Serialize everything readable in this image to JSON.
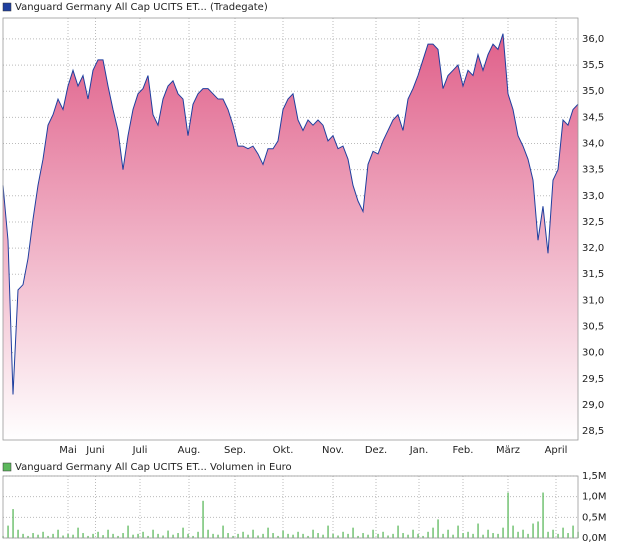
{
  "chart_data": [
    {
      "type": "area",
      "title": "Vanguard Germany All Cap UCITS ET... (Tradegate)",
      "legend_color": "#1f3f9f",
      "color": "#1f3f9f",
      "fill_color": "#e0608a",
      "values": [
        33.2,
        32.15,
        29.2,
        31.2,
        31.3,
        31.8,
        32.55,
        33.2,
        33.7,
        34.35,
        34.55,
        34.85,
        34.65,
        35.1,
        35.4,
        35.1,
        35.3,
        34.85,
        35.4,
        35.6,
        35.6,
        35.1,
        34.65,
        34.25,
        33.5,
        34.15,
        34.65,
        34.95,
        35.05,
        35.3,
        34.55,
        34.35,
        34.85,
        35.1,
        35.2,
        34.95,
        34.85,
        34.15,
        34.75,
        34.95,
        35.05,
        35.05,
        34.95,
        34.85,
        34.85,
        34.65,
        34.35,
        33.95,
        33.95,
        33.9,
        33.95,
        33.8,
        33.6,
        33.9,
        33.9,
        34.05,
        34.65,
        34.85,
        34.95,
        34.45,
        34.25,
        34.45,
        34.35,
        34.45,
        34.35,
        34.05,
        34.15,
        33.9,
        33.95,
        33.7,
        33.2,
        32.9,
        32.7,
        33.6,
        33.85,
        33.8,
        34.05,
        34.25,
        34.45,
        34.55,
        34.25,
        34.85,
        35.05,
        35.3,
        35.6,
        35.9,
        35.9,
        35.8,
        35.05,
        35.3,
        35.4,
        35.5,
        35.1,
        35.4,
        35.3,
        35.7,
        35.4,
        35.7,
        35.9,
        35.8,
        36.1,
        34.95,
        34.65,
        34.15,
        33.95,
        33.7,
        33.3,
        32.15,
        32.8,
        31.9,
        33.3,
        33.5,
        34.45,
        34.35,
        34.65,
        34.75
      ],
      "xlim": [
        0,
        115
      ],
      "xticks": [
        {
          "value": 13,
          "label": "Mai"
        },
        {
          "value": 18.5,
          "label": "Juni"
        },
        {
          "value": 27.4,
          "label": "Juli"
        },
        {
          "value": 37.2,
          "label": "Aug."
        },
        {
          "value": 46.4,
          "label": "Sep."
        },
        {
          "value": 56,
          "label": "Okt."
        },
        {
          "value": 66,
          "label": "Nov."
        },
        {
          "value": 74.6,
          "label": "Dez."
        },
        {
          "value": 83.2,
          "label": "Jan."
        },
        {
          "value": 92,
          "label": "Feb."
        },
        {
          "value": 101,
          "label": "März"
        },
        {
          "value": 110.6,
          "label": "April"
        }
      ],
      "ylim": [
        28.33,
        36.4
      ],
      "yticks": [
        {
          "value": 28.5,
          "label": "28,5"
        },
        {
          "value": 29,
          "label": "29,0"
        },
        {
          "value": 29.5,
          "label": "29,5"
        },
        {
          "value": 30,
          "label": "30,0"
        },
        {
          "value": 30.5,
          "label": "30,5"
        },
        {
          "value": 31,
          "label": "31,0"
        },
        {
          "value": 31.5,
          "label": "31,5"
        },
        {
          "value": 32,
          "label": "32,0"
        },
        {
          "value": 32.5,
          "label": "32,5"
        },
        {
          "value": 33,
          "label": "33,0"
        },
        {
          "value": 33.5,
          "label": "33,5"
        },
        {
          "value": 34,
          "label": "34,0"
        },
        {
          "value": 34.5,
          "label": "34,5"
        },
        {
          "value": 35,
          "label": "35,0"
        },
        {
          "value": 35.5,
          "label": "35,5"
        },
        {
          "value": 36,
          "label": "36,0"
        }
      ],
      "grid": true
    },
    {
      "type": "bar",
      "title": "Vanguard Germany All Cap UCITS ET... Volumen in Euro",
      "legend_color": "#5cb85c",
      "color": "#5cb85c",
      "values": [
        0.05,
        0.3,
        0.7,
        0.2,
        0.1,
        0.05,
        0.12,
        0.08,
        0.15,
        0.05,
        0.1,
        0.2,
        0.06,
        0.1,
        0.08,
        0.25,
        0.12,
        0.05,
        0.1,
        0.15,
        0.07,
        0.2,
        0.1,
        0.05,
        0.12,
        0.3,
        0.08,
        0.1,
        0.15,
        0.05,
        0.2,
        0.1,
        0.06,
        0.18,
        0.08,
        0.12,
        0.25,
        0.1,
        0.05,
        0.15,
        0.9,
        0.2,
        0.1,
        0.08,
        0.3,
        0.12,
        0.05,
        0.1,
        0.15,
        0.08,
        0.2,
        0.06,
        0.1,
        0.25,
        0.12,
        0.05,
        0.18,
        0.1,
        0.08,
        0.15,
        0.1,
        0.05,
        0.2,
        0.12,
        0.08,
        0.3,
        0.1,
        0.06,
        0.15,
        0.1,
        0.25,
        0.05,
        0.12,
        0.08,
        0.2,
        0.1,
        0.15,
        0.06,
        0.1,
        0.3,
        0.12,
        0.08,
        0.2,
        0.1,
        0.05,
        0.15,
        0.25,
        0.45,
        0.1,
        0.2,
        0.08,
        0.3,
        0.12,
        0.15,
        0.1,
        0.35,
        0.08,
        0.2,
        0.12,
        0.1,
        0.25,
        1.1,
        0.3,
        0.15,
        0.2,
        0.1,
        0.35,
        0.4,
        1.1,
        0.15,
        0.2,
        0.1,
        0.25,
        0.12,
        0.3,
        0.15
      ],
      "xlim": [
        0,
        115
      ],
      "ylim": [
        0,
        1.5
      ],
      "yticks": [
        {
          "value": 0,
          "label": "0,0M"
        },
        {
          "value": 0.5,
          "label": "0,5M"
        },
        {
          "value": 1,
          "label": "1,0M"
        },
        {
          "value": 1.5,
          "label": "1,5M"
        }
      ],
      "grid": true
    }
  ]
}
